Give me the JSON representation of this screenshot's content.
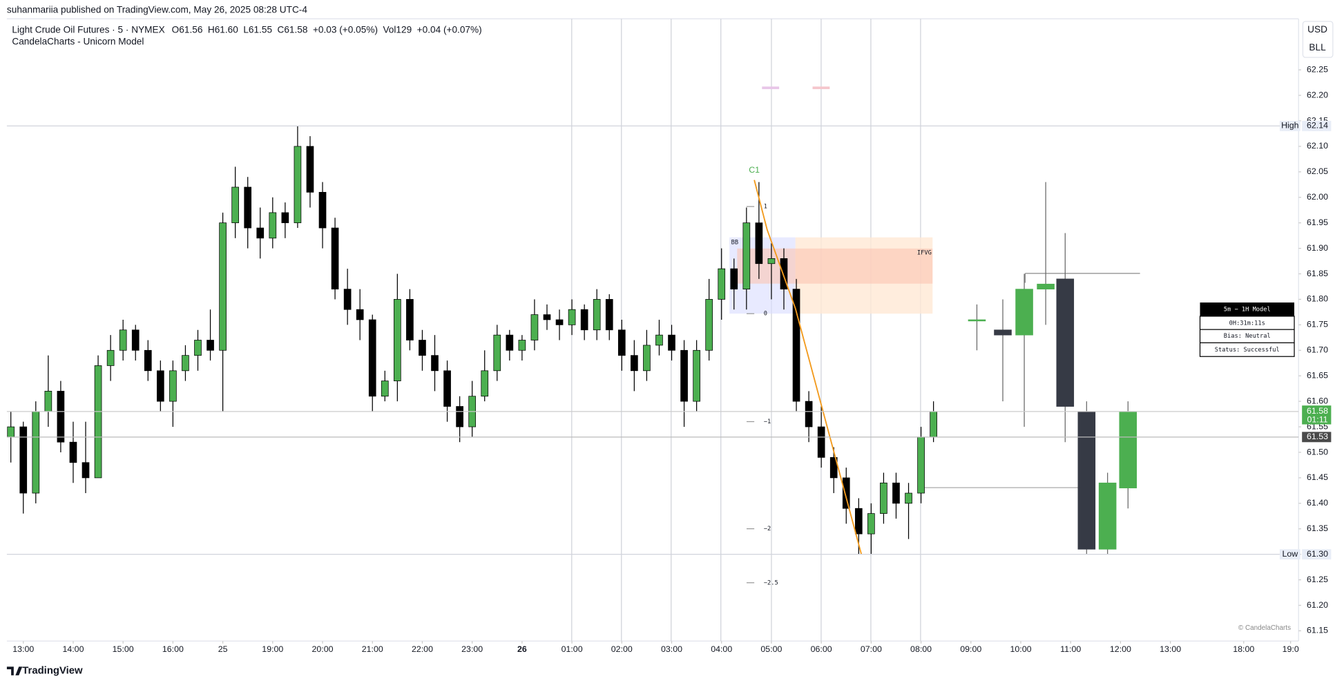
{
  "chart_data": {
    "type": "candlestick",
    "attribution": "suhanmariia published on TradingView.com, May 26, 2025 08:28 UTC-4",
    "title": "Light Crude Oil Futures · 5 · NYMEX",
    "ohlc_header": [
      "O61.56",
      "H61.60",
      "L61.55",
      "C61.58",
      "+0.03 (+0.05%)",
      "Vol129",
      "+0.04 (+0.07%)"
    ],
    "indicator": "CandelaCharts - Unicorn Model",
    "currency": [
      "USD",
      "BLL"
    ],
    "candles": {
      "up_color": "#4caf50",
      "down_color": "#000000",
      "x": [
        -0.25,
        0,
        0.25,
        0.5,
        0.75,
        1,
        1.25,
        1.5,
        1.75,
        2,
        2.25,
        2.5,
        2.75,
        3,
        3.25,
        3.5,
        3.75,
        4,
        4.25,
        4.5,
        4.75,
        5,
        5.25,
        5.5,
        5.75,
        6,
        6.25,
        6.5,
        6.75,
        7,
        7.25,
        7.5,
        7.75,
        8,
        8.25,
        8.5,
        8.75,
        9,
        9.25,
        9.5,
        9.75,
        10,
        10.25,
        10.5,
        10.75,
        11,
        11.25,
        11.5,
        11.75,
        12,
        12.25,
        12.5,
        12.75,
        13,
        13.25,
        13.5,
        13.75,
        14,
        14.25,
        14.5,
        14.75,
        15,
        15.25,
        15.5,
        15.75,
        16,
        16.25,
        16.5,
        16.75,
        17,
        17.25,
        17.5,
        17.75,
        18,
        18.25
      ],
      "open": [
        61.53,
        61.55,
        61.42,
        61.58,
        61.62,
        61.52,
        61.48,
        61.45,
        61.67,
        61.7,
        61.74,
        61.7,
        61.66,
        61.6,
        61.66,
        61.69,
        61.72,
        61.7,
        61.95,
        62.02,
        61.94,
        61.92,
        61.97,
        61.95,
        62.1,
        62.01,
        61.94,
        61.82,
        61.78,
        61.76,
        61.61,
        61.64,
        61.8,
        61.72,
        61.69,
        61.66,
        61.59,
        61.55,
        61.61,
        61.66,
        61.73,
        61.7,
        61.72,
        61.77,
        61.76,
        61.75,
        61.78,
        61.74,
        61.8,
        61.74,
        61.69,
        61.66,
        61.71,
        61.73,
        61.7,
        61.6,
        61.7,
        61.8,
        61.86,
        61.82,
        61.95,
        61.87,
        61.88,
        61.82,
        61.6,
        61.55,
        61.49,
        61.45,
        61.39,
        61.34,
        61.38,
        61.44,
        61.4,
        61.42,
        61.53
      ],
      "high": [
        61.58,
        61.56,
        61.6,
        61.69,
        61.64,
        61.56,
        61.56,
        61.69,
        61.73,
        61.76,
        61.75,
        61.72,
        61.68,
        61.68,
        61.71,
        61.74,
        61.78,
        61.97,
        62.06,
        62.04,
        61.98,
        62.0,
        61.99,
        62.14,
        62.12,
        62.03,
        61.96,
        61.86,
        61.82,
        61.77,
        61.66,
        61.85,
        61.82,
        61.74,
        61.73,
        61.68,
        61.61,
        61.64,
        61.7,
        61.75,
        61.74,
        61.73,
        61.8,
        61.79,
        61.78,
        61.8,
        61.79,
        61.82,
        61.81,
        61.76,
        61.72,
        61.74,
        61.76,
        61.75,
        61.72,
        61.72,
        61.84,
        61.9,
        61.88,
        61.98,
        62.03,
        61.91,
        61.9,
        61.84,
        61.62,
        61.59,
        61.51,
        61.47,
        61.41,
        61.4,
        61.46,
        61.46,
        61.44,
        61.55,
        61.6
      ],
      "low": [
        61.48,
        61.38,
        61.4,
        61.55,
        61.5,
        61.44,
        61.42,
        61.45,
        61.64,
        61.68,
        61.68,
        61.64,
        61.58,
        61.55,
        61.64,
        61.66,
        61.68,
        61.58,
        61.92,
        61.9,
        61.88,
        61.9,
        61.92,
        61.94,
        61.98,
        61.9,
        61.8,
        61.75,
        61.72,
        61.58,
        61.6,
        61.6,
        61.7,
        61.66,
        61.62,
        61.56,
        61.52,
        61.53,
        61.6,
        61.64,
        61.68,
        61.68,
        61.7,
        61.74,
        61.72,
        61.73,
        61.72,
        61.72,
        61.72,
        61.66,
        61.62,
        61.64,
        61.69,
        61.68,
        61.55,
        61.58,
        61.68,
        61.76,
        61.78,
        61.78,
        61.84,
        61.8,
        61.78,
        61.58,
        61.52,
        61.47,
        61.42,
        61.36,
        61.3,
        61.3,
        61.36,
        61.37,
        61.33,
        61.4,
        61.52
      ],
      "close": [
        61.55,
        61.42,
        61.58,
        61.62,
        61.52,
        61.48,
        61.45,
        61.67,
        61.7,
        61.74,
        61.7,
        61.66,
        61.6,
        61.66,
        61.69,
        61.72,
        61.7,
        61.95,
        62.02,
        61.94,
        61.92,
        61.97,
        61.95,
        62.1,
        62.01,
        61.94,
        61.82,
        61.78,
        61.76,
        61.61,
        61.64,
        61.8,
        61.72,
        61.69,
        61.66,
        61.59,
        61.55,
        61.61,
        61.66,
        61.73,
        61.7,
        61.72,
        61.77,
        61.76,
        61.75,
        61.78,
        61.74,
        61.8,
        61.74,
        61.69,
        61.66,
        61.71,
        61.73,
        61.7,
        61.6,
        61.7,
        61.8,
        61.86,
        61.82,
        61.95,
        61.87,
        61.88,
        61.82,
        61.6,
        61.55,
        61.49,
        61.45,
        61.39,
        61.34,
        61.38,
        61.44,
        61.4,
        61.42,
        61.53,
        61.58
      ]
    },
    "htf_candles": {
      "up_color": "#4caf50",
      "down_color": "#363a45",
      "x": [
        19.12,
        19.64,
        20.07,
        20.5,
        20.89,
        21.32,
        21.74,
        22.15
      ],
      "open": [
        61.76,
        61.74,
        61.73,
        61.82,
        61.84,
        61.58,
        61.31,
        61.43
      ],
      "high": [
        61.79,
        61.8,
        61.85,
        62.03,
        61.93,
        61.6,
        61.46,
        61.6
      ],
      "low": [
        61.7,
        61.6,
        61.55,
        61.75,
        61.52,
        61.3,
        61.3,
        61.39
      ],
      "close": [
        61.76,
        61.73,
        61.82,
        61.83,
        61.59,
        61.31,
        61.44,
        61.58
      ]
    },
    "xlim": [
      -0.33,
      25.57
    ],
    "xticks": [
      {
        "value": 0,
        "label": "13:00"
      },
      {
        "value": 1,
        "label": "14:00"
      },
      {
        "value": 2,
        "label": "15:00"
      },
      {
        "value": 3,
        "label": "16:00"
      },
      {
        "value": 4,
        "label": "25"
      },
      {
        "value": 5,
        "label": "19:00"
      },
      {
        "value": 6,
        "label": "20:00"
      },
      {
        "value": 7,
        "label": "21:00"
      },
      {
        "value": 8,
        "label": "22:00"
      },
      {
        "value": 9,
        "label": "23:00"
      },
      {
        "value": 10,
        "label": "26"
      },
      {
        "value": 11,
        "label": "01:00"
      },
      {
        "value": 12,
        "label": "02:00"
      },
      {
        "value": 13,
        "label": "03:00"
      },
      {
        "value": 14,
        "label": "04:00"
      },
      {
        "value": 15,
        "label": "05:00"
      },
      {
        "value": 16,
        "label": "06:00"
      },
      {
        "value": 17,
        "label": "07:00"
      },
      {
        "value": 18,
        "label": "08:00"
      },
      {
        "value": 19,
        "label": "09:00"
      },
      {
        "value": 20,
        "label": "10:00"
      },
      {
        "value": 21,
        "label": "11:00"
      },
      {
        "value": 22,
        "label": "12:00"
      },
      {
        "value": 23,
        "label": "13:00"
      },
      {
        "value": 24.47,
        "label": "18:00"
      },
      {
        "value": 25.41,
        "label": "19:0"
      }
    ],
    "bold_xtick": "26",
    "ylim": [
      61.13,
      62.35
    ],
    "yticks": [
      {
        "value": 62.25,
        "label": "62.25"
      },
      {
        "value": 62.2,
        "label": "62.20"
      },
      {
        "value": 62.15,
        "label": "62.15"
      },
      {
        "value": 62.1,
        "label": "62.10"
      },
      {
        "value": 62.05,
        "label": "62.05"
      },
      {
        "value": 62,
        "label": "62.00"
      },
      {
        "value": 61.95,
        "label": "61.95"
      },
      {
        "value": 61.9,
        "label": "61.90"
      },
      {
        "value": 61.85,
        "label": "61.85"
      },
      {
        "value": 61.8,
        "label": "61.80"
      },
      {
        "value": 61.75,
        "label": "61.75"
      },
      {
        "value": 61.7,
        "label": "61.70"
      },
      {
        "value": 61.65,
        "label": "61.65"
      },
      {
        "value": 61.6,
        "label": "61.60"
      },
      {
        "value": 61.55,
        "label": "61.55"
      },
      {
        "value": 61.5,
        "label": "61.50"
      },
      {
        "value": 61.45,
        "label": "61.45"
      },
      {
        "value": 61.4,
        "label": "61.40"
      },
      {
        "value": 61.35,
        "label": "61.35"
      },
      {
        "value": 61.3,
        "label": "61.30"
      },
      {
        "value": 61.25,
        "label": "61.25"
      },
      {
        "value": 61.2,
        "label": "61.20"
      },
      {
        "value": 61.15,
        "label": "61.15"
      }
    ],
    "price_labels": [
      {
        "name": "High",
        "value": 62.14,
        "label": "62.14"
      },
      {
        "name": "Low",
        "value": 61.3,
        "label": "61.30"
      }
    ],
    "last_price": 61.58,
    "countdown": "01:11",
    "prev_close": 61.53,
    "annotations": {
      "c1": "C1",
      "bb": "BB",
      "ifvg": "IFVG",
      "fib": [
        "1",
        "0",
        "−1",
        "−2",
        "−2.5"
      ]
    },
    "model_table": [
      "5m − 1H Model",
      "0H:31m:11s",
      "Bias: Neutral",
      "Status: Successful"
    ],
    "watermark": "© CandelaCharts",
    "logo": "TradingView"
  }
}
